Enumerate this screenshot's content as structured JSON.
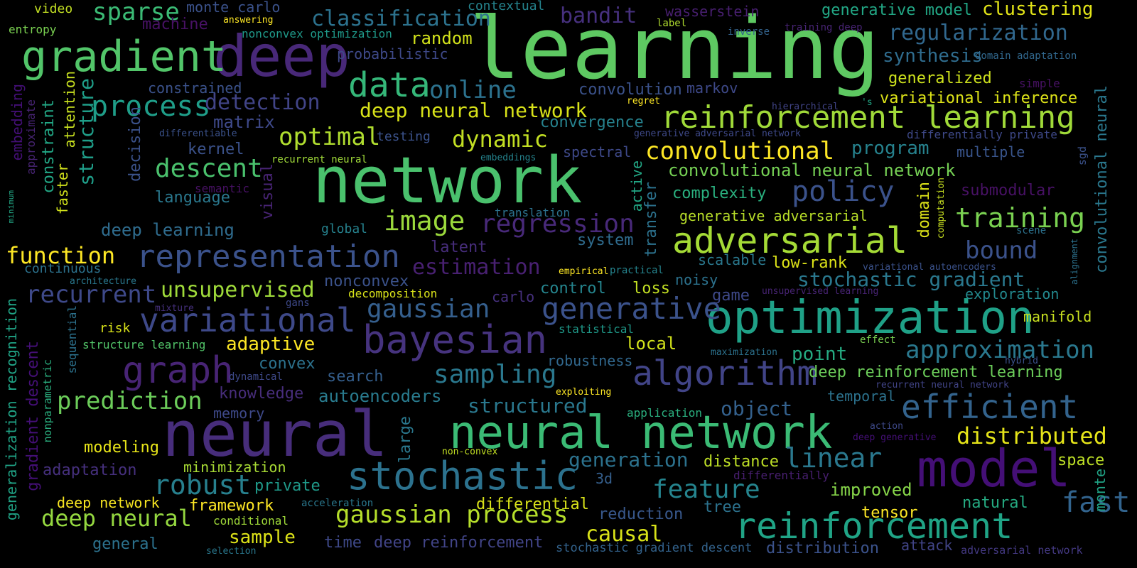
{
  "colors": {
    "background": "#000000",
    "palette": "viridis"
  },
  "words": [
    {
      "text": "learning",
      "c": "#5ec962"
    },
    {
      "text": "network",
      "c": "#4ac16d"
    },
    {
      "text": "neural",
      "c": "#472d7b"
    },
    {
      "text": "deep",
      "c": "#482878"
    },
    {
      "text": "neural network",
      "c": "#3bbb75"
    },
    {
      "text": "optimization",
      "c": "#1fa187"
    },
    {
      "text": "model",
      "c": "#440f76"
    },
    {
      "text": "stochastic",
      "c": "#2c728e"
    },
    {
      "text": "gradient",
      "c": "#52c569"
    },
    {
      "text": "reinforcement learning",
      "c": "#a0da39"
    },
    {
      "text": "representation",
      "c": "#3b528b"
    },
    {
      "text": "adversarial",
      "c": "#a5db36"
    },
    {
      "text": "bayesian",
      "c": "#46337e"
    },
    {
      "text": "algorithm",
      "c": "#414487"
    },
    {
      "text": "variational",
      "c": "#3e4989"
    },
    {
      "text": "reinforcement",
      "c": "#20a486"
    },
    {
      "text": "efficient",
      "c": "#33638d"
    },
    {
      "text": "generative",
      "c": "#3b528b"
    },
    {
      "text": "graph",
      "c": "#482475"
    },
    {
      "text": "data",
      "c": "#35b779"
    },
    {
      "text": "process",
      "c": "#1f9e89"
    },
    {
      "text": "policy",
      "c": "#3b528b"
    },
    {
      "text": "training",
      "c": "#7ad151"
    },
    {
      "text": "linear",
      "c": "#2a788e"
    },
    {
      "text": "gaussian process",
      "c": "#b5de2b"
    },
    {
      "text": "robust",
      "c": "#27808e"
    },
    {
      "text": "image",
      "c": "#9bd93c"
    },
    {
      "text": "convolutional",
      "c": "#fde725"
    },
    {
      "text": "regression",
      "c": "#482979"
    },
    {
      "text": "feature",
      "c": "#25848e"
    },
    {
      "text": "gaussian",
      "c": "#355f8d"
    },
    {
      "text": "sampling",
      "c": "#2a788e"
    },
    {
      "text": "fast",
      "c": "#32648e"
    },
    {
      "text": "prediction",
      "c": "#6ccd5a"
    },
    {
      "text": "descent",
      "c": "#4ac16d"
    },
    {
      "text": "distributed",
      "c": "#e5e419"
    },
    {
      "text": "approximation",
      "c": "#2a788e"
    },
    {
      "text": "sparse",
      "c": "#3bbb75"
    },
    {
      "text": "online",
      "c": "#2c728e"
    },
    {
      "text": "optimal",
      "c": "#b0dd2f"
    },
    {
      "text": "dynamic",
      "c": "#c2df23"
    },
    {
      "text": "deep neural network",
      "c": "#d8e219"
    },
    {
      "text": "function",
      "c": "#fde725"
    },
    {
      "text": "recurrent",
      "c": "#3e4989"
    },
    {
      "text": "unsupervised",
      "c": "#9fda3a"
    },
    {
      "text": "structured",
      "c": "#2a788e"
    },
    {
      "text": "deep neural",
      "c": "#95d840"
    },
    {
      "text": "generation",
      "c": "#2c728e"
    },
    {
      "text": "bound",
      "c": "#3b528b"
    },
    {
      "text": "estimation",
      "c": "#482071"
    },
    {
      "text": "stochastic gradient",
      "c": "#2a788e"
    },
    {
      "text": "classification",
      "c": "#2c728e"
    },
    {
      "text": "regularization",
      "c": "#31688e"
    },
    {
      "text": "detection",
      "c": "#414487"
    },
    {
      "text": "deep reinforcement learning",
      "c": "#6ccd5a"
    },
    {
      "text": "causal",
      "c": "#d8e219"
    },
    {
      "text": "convolutional neural network",
      "c": "#75d054"
    },
    {
      "text": "object",
      "c": "#34618d"
    },
    {
      "text": "clustering",
      "c": "#e2e418"
    },
    {
      "text": "bandit",
      "c": "#46307e"
    },
    {
      "text": "autoencoders",
      "c": "#297b8e"
    },
    {
      "text": "adaptive",
      "c": "#fde725"
    },
    {
      "text": "synthesis",
      "c": "#2f6c8e"
    },
    {
      "text": "random",
      "c": "#d2e21b"
    },
    {
      "text": "generative model",
      "c": "#22a785"
    },
    {
      "text": "generalized",
      "c": "#cde11d"
    },
    {
      "text": "variational inference",
      "c": "#dde318"
    },
    {
      "text": "convergence",
      "c": "#26828e"
    },
    {
      "text": "program",
      "c": "#26828e"
    },
    {
      "text": "convolution",
      "c": "#3b528b"
    },
    {
      "text": "complexity",
      "c": "#2ab07f"
    },
    {
      "text": "generative adversarial",
      "c": "#b8de29"
    },
    {
      "text": "matrix",
      "c": "#3e4989"
    },
    {
      "text": "kernel",
      "c": "#3b528b"
    },
    {
      "text": "language",
      "c": "#2a788e"
    },
    {
      "text": "deep learning",
      "c": "#2f6c8e"
    },
    {
      "text": "submodular",
      "c": "#471164"
    },
    {
      "text": "system",
      "c": "#2f6c8e"
    },
    {
      "text": "low-rank",
      "c": "#dde318"
    },
    {
      "text": "scalable",
      "c": "#2a788e"
    },
    {
      "text": "noisy",
      "c": "#2c728e"
    },
    {
      "text": "control",
      "c": "#25858e"
    },
    {
      "text": "loss",
      "c": "#c2df23"
    },
    {
      "text": "exploration",
      "c": "#23898e"
    },
    {
      "text": "game",
      "c": "#3e4989"
    },
    {
      "text": "manifold",
      "c": "#c8e020"
    },
    {
      "text": "nonconvex",
      "c": "#3b528b"
    },
    {
      "text": "point",
      "c": "#25ab82"
    },
    {
      "text": "convex",
      "c": "#2c728e"
    },
    {
      "text": "search",
      "c": "#355f8d"
    },
    {
      "text": "local",
      "c": "#d2e21b"
    },
    {
      "text": "knowledge",
      "c": "#472d7b"
    },
    {
      "text": "robustness",
      "c": "#31688e"
    },
    {
      "text": "temporal",
      "c": "#2c728e"
    },
    {
      "text": "memory",
      "c": "#3e4989"
    },
    {
      "text": "modeling",
      "c": "#e7e419"
    },
    {
      "text": "adaptation",
      "c": "#46307e"
    },
    {
      "text": "minimization",
      "c": "#a8db34"
    },
    {
      "text": "private",
      "c": "#1f9a8a"
    },
    {
      "text": "deep network",
      "c": "#f8e621"
    },
    {
      "text": "framework",
      "c": "#fde725"
    },
    {
      "text": "sample",
      "c": "#dde318"
    },
    {
      "text": "general",
      "c": "#2c728e"
    },
    {
      "text": "time",
      "c": "#3e4989"
    },
    {
      "text": "deep reinforcement",
      "c": "#414487"
    },
    {
      "text": "differential",
      "c": "#d8e219"
    },
    {
      "text": "reduction",
      "c": "#38588c"
    },
    {
      "text": "distance",
      "c": "#bddf26"
    },
    {
      "text": "improved",
      "c": "#86d549"
    },
    {
      "text": "tree",
      "c": "#2c728e"
    },
    {
      "text": "tensor",
      "c": "#fde725"
    },
    {
      "text": "natural",
      "c": "#25ab82"
    },
    {
      "text": "space",
      "c": "#bddf26"
    },
    {
      "text": "attack",
      "c": "#414487"
    },
    {
      "text": "distribution",
      "c": "#3b528b"
    },
    {
      "text": "stochastic gradient descent",
      "c": "#33638d"
    },
    {
      "text": "adversarial network",
      "c": "#443983"
    },
    {
      "text": "multiple",
      "c": "#39558c"
    },
    {
      "text": "spectral",
      "c": "#3e4989"
    },
    {
      "text": "machine",
      "c": "#471164"
    },
    {
      "text": "monte carlo",
      "c": "#3b528b"
    },
    {
      "text": "video",
      "c": "#c2df23"
    },
    {
      "text": "entropy",
      "c": "#7ad151"
    },
    {
      "text": "contextual",
      "c": "#25848e"
    },
    {
      "text": "wasserstein",
      "c": "#481f70"
    },
    {
      "text": "answering",
      "c": "#fde725"
    },
    {
      "text": "nonconvex optimization",
      "c": "#1f9a8a"
    },
    {
      "text": "label",
      "c": "#b0dd2f"
    },
    {
      "text": "inverse",
      "c": "#33638d"
    },
    {
      "text": "training deep",
      "c": "#482475"
    },
    {
      "text": "probabilistic",
      "c": "#3e4989"
    },
    {
      "text": "domain adaptation",
      "c": "#31688e"
    },
    {
      "text": "constrained",
      "c": "#3b528b"
    },
    {
      "text": "markov",
      "c": "#3e4989"
    },
    {
      "text": "simple",
      "c": "#471164"
    },
    {
      "text": "regret",
      "c": "#fde725"
    },
    {
      "text": "hierarchical",
      "c": "#414487"
    },
    {
      "text": "'s",
      "c": "#22a785"
    },
    {
      "text": "differentiable",
      "c": "#3b528b"
    },
    {
      "text": "testing",
      "c": "#3b528b"
    },
    {
      "text": "generative adversarial network",
      "c": "#3e4989"
    },
    {
      "text": "differentially private",
      "c": "#3e4989"
    },
    {
      "text": "recurrent neural",
      "c": "#a0da39"
    },
    {
      "text": "embeddings",
      "c": "#25848e"
    },
    {
      "text": "semantic",
      "c": "#471164"
    },
    {
      "text": "translation",
      "c": "#2c728e"
    },
    {
      "text": "global",
      "c": "#26828e"
    },
    {
      "text": "latent",
      "c": "#472d7b"
    },
    {
      "text": "continuous",
      "c": "#2c728e"
    },
    {
      "text": "architecture",
      "c": "#2a788e"
    },
    {
      "text": "mixture",
      "c": "#46307e"
    },
    {
      "text": "gans",
      "c": "#3e4989"
    },
    {
      "text": "risk",
      "c": "#d8e219"
    },
    {
      "text": "structure learning",
      "c": "#52c569"
    },
    {
      "text": "decomposition",
      "c": "#d8e219"
    },
    {
      "text": "carlo",
      "c": "#46307e"
    },
    {
      "text": "statistical",
      "c": "#1f9a8a"
    },
    {
      "text": "empirical",
      "c": "#fde725"
    },
    {
      "text": "practical",
      "c": "#25848e"
    },
    {
      "text": "variational autoencoders",
      "c": "#3b528b"
    },
    {
      "text": "unsupervised learning",
      "c": "#482475"
    },
    {
      "text": "maximization",
      "c": "#2c728e"
    },
    {
      "text": "effect",
      "c": "#7ad151"
    },
    {
      "text": "hybrid",
      "c": "#3b528b"
    },
    {
      "text": "recurrent neural network",
      "c": "#414487"
    },
    {
      "text": "dynamical",
      "c": "#3e4989"
    },
    {
      "text": "exploiting",
      "c": "#fde725"
    },
    {
      "text": "application",
      "c": "#2ab07f"
    },
    {
      "text": "action",
      "c": "#3e4989"
    },
    {
      "text": "deep generative",
      "c": "#440f76"
    },
    {
      "text": "non-convex",
      "c": "#c2df23"
    },
    {
      "text": "differentially",
      "c": "#481f70"
    },
    {
      "text": "3d",
      "c": "#355f8d"
    },
    {
      "text": "acceleration",
      "c": "#2a788e"
    },
    {
      "text": "conditional",
      "c": "#a0da39"
    },
    {
      "text": "selection",
      "c": "#2a788e"
    },
    {
      "text": "large",
      "c": "#2a788e"
    },
    {
      "text": "scene",
      "c": "#2c728e"
    },
    {
      "text": "structure",
      "c": "#1f9e89"
    },
    {
      "text": "attention",
      "c": "#c8e020"
    },
    {
      "text": "decision",
      "c": "#3b528b"
    },
    {
      "text": "visual",
      "c": "#482475"
    },
    {
      "text": "faster",
      "c": "#d2e21b"
    },
    {
      "text": "constraint",
      "c": "#22a785"
    },
    {
      "text": "approximate",
      "c": "#482475"
    },
    {
      "text": "embedding",
      "c": "#440f76"
    },
    {
      "text": "minimum",
      "c": "#22a785"
    },
    {
      "text": "generalization recognition",
      "c": "#20a486"
    },
    {
      "text": "gradient descent",
      "c": "#440f76"
    },
    {
      "text": "nonparametric",
      "c": "#2ab07f"
    },
    {
      "text": "sequential",
      "c": "#2c728e"
    },
    {
      "text": "transfer",
      "c": "#2c728e"
    },
    {
      "text": "active",
      "c": "#22a785"
    },
    {
      "text": "domain",
      "c": "#dde318"
    },
    {
      "text": "computation",
      "c": "#c8e020"
    },
    {
      "text": "sgd",
      "c": "#3b528b"
    },
    {
      "text": "convolutional neural",
      "c": "#2a788e"
    },
    {
      "text": "alignment",
      "c": "#2c728e"
    },
    {
      "text": "monte",
      "c": "#20a486"
    }
  ]
}
